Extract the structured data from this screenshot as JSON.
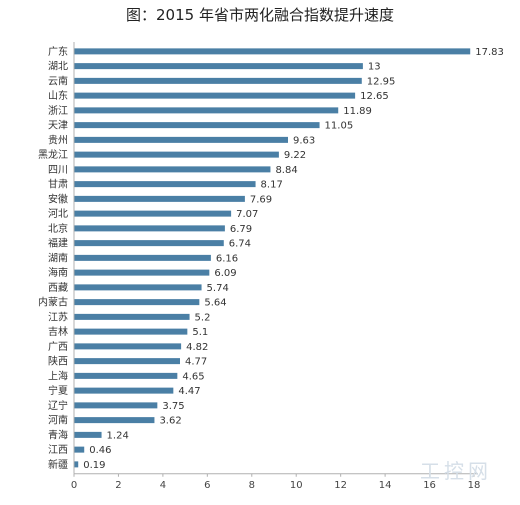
{
  "chart_data": {
    "type": "bar",
    "orientation": "horizontal",
    "title": "图：2015 年省市两化融合指数提升速度",
    "categories": [
      "广东",
      "湖北",
      "云南",
      "山东",
      "浙江",
      "天津",
      "贵州",
      "黑龙江",
      "四川",
      "甘肃",
      "安徽",
      "河北",
      "北京",
      "福建",
      "湖南",
      "海南",
      "西藏",
      "内蒙古",
      "江苏",
      "吉林",
      "广西",
      "陕西",
      "上海",
      "宁夏",
      "辽宁",
      "河南",
      "青海",
      "江西",
      "新疆"
    ],
    "values": [
      17.83,
      13,
      12.95,
      12.65,
      11.89,
      11.05,
      9.63,
      9.22,
      8.84,
      8.17,
      7.69,
      7.07,
      6.79,
      6.74,
      6.16,
      6.09,
      5.74,
      5.64,
      5.2,
      5.1,
      4.82,
      4.77,
      4.65,
      4.47,
      3.75,
      3.62,
      1.24,
      0.46,
      0.19
    ],
    "value_labels": [
      "17.83",
      "13",
      "12.95",
      "12.65",
      "11.89",
      "11.05",
      "9.63",
      "9.22",
      "8.84",
      "8.17",
      "7.69",
      "7.07",
      "6.79",
      "6.74",
      "6.16",
      "6.09",
      "5.74",
      "5.64",
      "5.2",
      "5.1",
      "4.82",
      "4.77",
      "4.65",
      "4.47",
      "3.75",
      "3.62",
      "1.24",
      "0.46",
      "0.19"
    ],
    "xlim": [
      0,
      18
    ],
    "xticks": [
      0,
      2,
      4,
      6,
      8,
      10,
      12,
      14,
      16,
      18
    ],
    "grid": false,
    "bar_color": "#4a7fa5"
  },
  "watermark": "工控网"
}
